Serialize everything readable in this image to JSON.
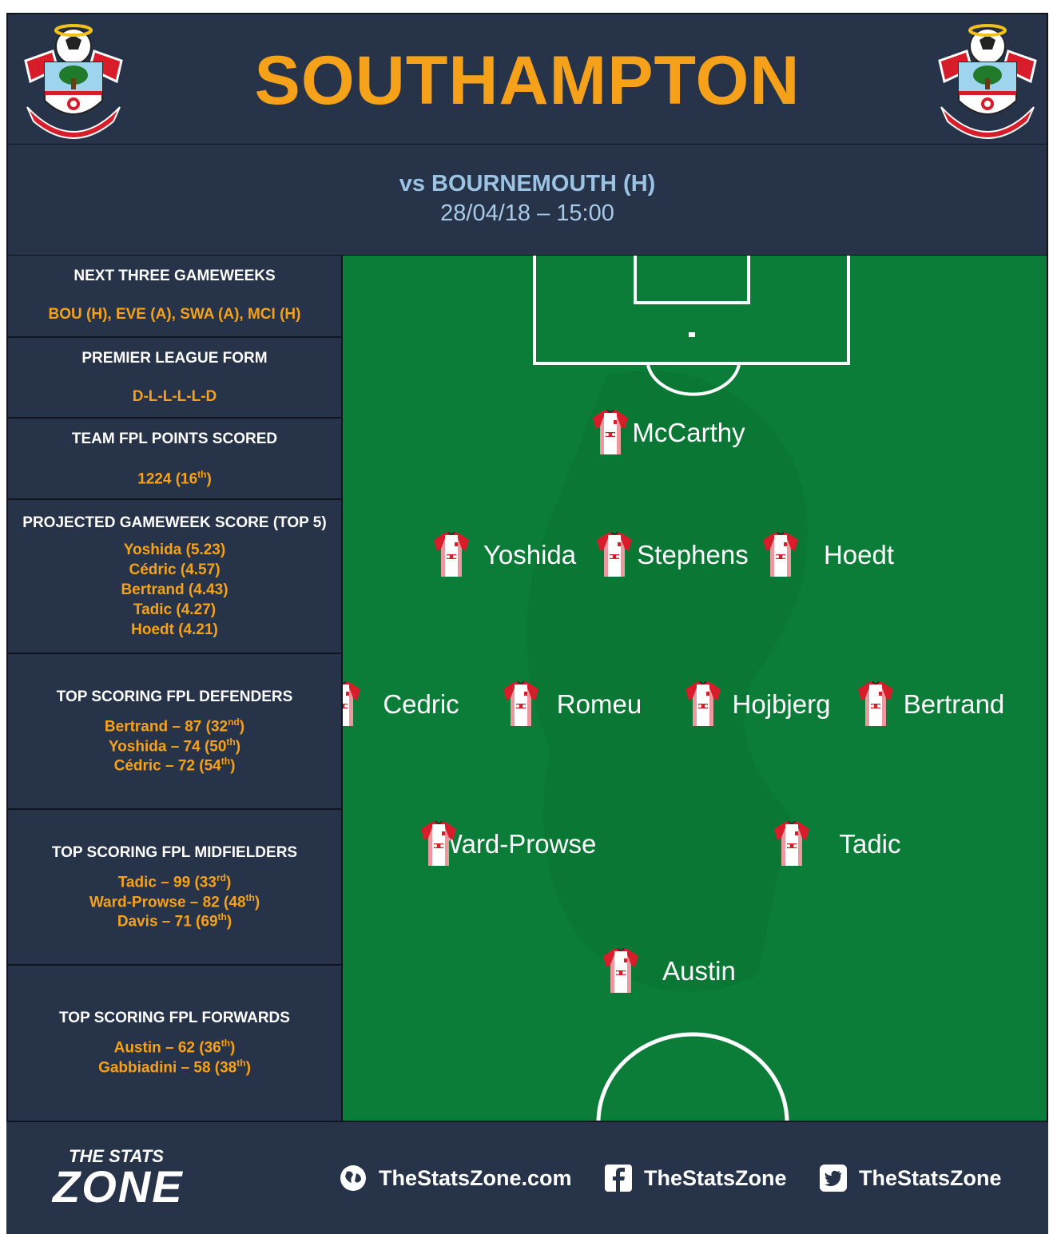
{
  "header": {
    "title": "SOUTHAMPTON",
    "crest_text": "SOUTHAMPTON FC"
  },
  "fixture": {
    "opponent": "vs BOURNEMOUTH (H)",
    "datetime": "28/04/18 – 15:00"
  },
  "sidebar": {
    "next_three": {
      "title": "NEXT THREE GAMEWEEKS",
      "value": "BOU (H), EVE (A), SWA (A), MCI (H)"
    },
    "form": {
      "title": "PREMIER LEAGUE FORM",
      "value": "D-L-L-L-L-D"
    },
    "team_points": {
      "title": "TEAM FPL POINTS SCORED",
      "value": "1224 (16",
      "sup": "th",
      "close": ")"
    },
    "projected": {
      "title": "PROJECTED GAMEWEEK SCORE (TOP 5)",
      "items": [
        "Yoshida (5.23)",
        "Cédric (4.57)",
        "Bertrand (4.43)",
        "Tadic (4.27)",
        "Hoedt (4.21)"
      ]
    },
    "defenders": {
      "title": "TOP SCORING FPL DEFENDERS",
      "items": [
        {
          "text": "Bertrand – 87 (32",
          "sup": "nd"
        },
        {
          "text": "Yoshida – 74 (50",
          "sup": "th"
        },
        {
          "text": "Cédric – 72 (54",
          "sup": "th"
        }
      ]
    },
    "midfielders": {
      "title": "TOP SCORING FPL MIDFIELDERS",
      "items": [
        {
          "text": "Tadic – 99 (33",
          "sup": "rd"
        },
        {
          "text": "Ward-Prowse – 82 (48",
          "sup": "th"
        },
        {
          "text": "Davis – 71 (69",
          "sup": "th"
        }
      ]
    },
    "forwards": {
      "title": "TOP SCORING FPL FORWARDS",
      "items": [
        {
          "text": "Austin – 62 (36",
          "sup": "th"
        },
        {
          "text": "Gabbiadini – 58 (38",
          "sup": "th"
        }
      ]
    }
  },
  "lineup": {
    "goalkeeper": "McCarthy",
    "defenders": [
      "Yoshida",
      "Stephens",
      "Hoedt"
    ],
    "midfielders": [
      "Cedric",
      "Romeu",
      "Hojbjerg",
      "Bertrand"
    ],
    "attacking_mid": [
      "Ward-Prowse",
      "Tadic"
    ],
    "forward": "Austin"
  },
  "footer": {
    "logo_top": "THE STATS",
    "logo_main": "ZONE",
    "website": "TheStatsZone.com",
    "facebook": "TheStatsZone",
    "twitter": "TheStatsZone"
  },
  "colors": {
    "navy": "#263349",
    "orange": "#f6a11a",
    "pitch": "#0c7d38",
    "light_blue": "#9cc3e4"
  },
  "icons": [
    "club-crest-icon",
    "shirt-icon",
    "globe-icon",
    "facebook-icon",
    "twitter-icon"
  ]
}
